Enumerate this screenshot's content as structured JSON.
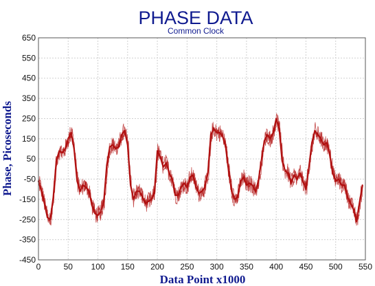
{
  "chart_data": {
    "type": "line",
    "title": "PHASE DATA",
    "subtitle": "Common Clock",
    "xlabel": "Data Point x1000",
    "ylabel": "Phase, Picoseconds",
    "xlim": [
      0,
      550
    ],
    "ylim": [
      -450,
      650
    ],
    "x_ticks": [
      0,
      50,
      100,
      150,
      200,
      250,
      300,
      350,
      400,
      450,
      500,
      550
    ],
    "y_ticks": [
      -450,
      -350,
      -250,
      -150,
      -50,
      50,
      150,
      250,
      350,
      450,
      550,
      650
    ],
    "grid": true,
    "colors": {
      "title": "#0f1a8f",
      "series": "#b01010",
      "grid": "#cfcfcf"
    },
    "series": [
      {
        "x": [
          0,
          5,
          10,
          15,
          20,
          25,
          30,
          35,
          40,
          45,
          50,
          55,
          60,
          65,
          70,
          75,
          80,
          85,
          90,
          95,
          100,
          105,
          110,
          115,
          120,
          125,
          130,
          135,
          140,
          145,
          150,
          155,
          160,
          165,
          170,
          175,
          180,
          185,
          190,
          195,
          200,
          205,
          210,
          215,
          220,
          225,
          230,
          235,
          240,
          245,
          250,
          255,
          260,
          265,
          270,
          275,
          280,
          285,
          290,
          295,
          300,
          305,
          310,
          315,
          320,
          325,
          330,
          335,
          340,
          345,
          350,
          355,
          360,
          365,
          370,
          375,
          380,
          385,
          390,
          395,
          400,
          405,
          410,
          415,
          420,
          425,
          430,
          435,
          440,
          445,
          450,
          455,
          460,
          465,
          470,
          475,
          480,
          485,
          490,
          495,
          500,
          505,
          510,
          515,
          520,
          525,
          530,
          535,
          540,
          545
        ],
        "values": [
          -60,
          -110,
          -170,
          -240,
          -250,
          -140,
          40,
          90,
          80,
          100,
          150,
          180,
          100,
          -60,
          -110,
          -80,
          -90,
          -110,
          -180,
          -220,
          -230,
          -210,
          -160,
          20,
          110,
          120,
          100,
          110,
          170,
          190,
          120,
          -80,
          -150,
          -110,
          -110,
          -140,
          -170,
          -160,
          -150,
          -120,
          90,
          60,
          10,
          30,
          -20,
          -50,
          -130,
          -130,
          -90,
          -70,
          -90,
          -40,
          -30,
          -90,
          -120,
          -110,
          -90,
          -20,
          170,
          200,
          180,
          180,
          160,
          110,
          -10,
          -110,
          -150,
          -140,
          -60,
          -40,
          -80,
          -70,
          -80,
          -110,
          -60,
          40,
          140,
          170,
          150,
          180,
          250,
          200,
          40,
          -10,
          -20,
          -70,
          -30,
          -50,
          -20,
          -60,
          -100,
          10,
          130,
          190,
          170,
          150,
          120,
          130,
          70,
          -20,
          -60,
          -50,
          -80,
          -80,
          -140,
          -170,
          -200,
          -260,
          -170,
          -80
        ]
      }
    ]
  }
}
